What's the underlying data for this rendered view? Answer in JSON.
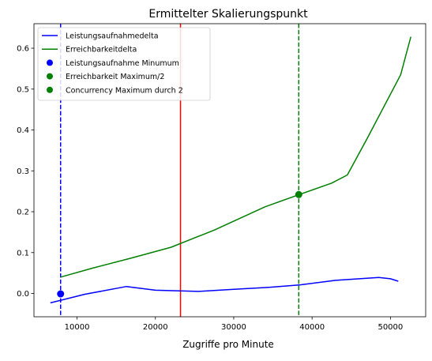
{
  "chart_data": {
    "type": "line",
    "title": "Ermittelter Skalierungspunkt",
    "xlabel": "Zugriffe pro Minute",
    "ylabel": "",
    "xlim": [
      4500,
      54500
    ],
    "ylim": [
      -0.057,
      0.66
    ],
    "xticks": [
      10000,
      20000,
      30000,
      40000,
      50000
    ],
    "xtick_labels": [
      "10000",
      "20000",
      "30000",
      "40000",
      "50000"
    ],
    "yticks": [
      0.0,
      0.1,
      0.2,
      0.3,
      0.4,
      0.5,
      0.6
    ],
    "ytick_labels": [
      "0.0",
      "0.1",
      "0.2",
      "0.3",
      "0.4",
      "0.5",
      "0.6"
    ],
    "grid": false,
    "legend_position": "upper-left",
    "series": [
      {
        "name": "Leistungsaufnahmedelta",
        "kind": "line",
        "color": "#0000ff",
        "x": [
          6600,
          11000,
          16300,
          20000,
          25500,
          30000,
          34500,
          38500,
          43000,
          48500,
          50000,
          51000
        ],
        "y": [
          -0.023,
          -0.002,
          0.017,
          0.008,
          0.005,
          0.01,
          0.015,
          0.021,
          0.032,
          0.039,
          0.036,
          0.03
        ]
      },
      {
        "name": "Erreichbarkeitdelta",
        "kind": "line",
        "color": "#008000",
        "x": [
          7900,
          12000,
          17000,
          22000,
          27500,
          34000,
          38500,
          42500,
          44500,
          47000,
          51300,
          52600
        ],
        "y": [
          0.04,
          0.062,
          0.087,
          0.113,
          0.155,
          0.212,
          0.243,
          0.27,
          0.29,
          0.378,
          0.535,
          0.628
        ]
      },
      {
        "name": "Leistungsaufnahme Minumum",
        "kind": "point",
        "color": "#0000ff",
        "x": [
          7900
        ],
        "y": [
          -0.001
        ]
      },
      {
        "name": "Erreichbarkeit Maximum/2",
        "kind": "point",
        "color": "#008000",
        "x": [
          38300
        ],
        "y": [
          0.242
        ]
      },
      {
        "name": "Concurrency Maximum durch 2",
        "kind": "point",
        "color": "#008000",
        "x": [],
        "y": []
      }
    ],
    "vertical_lines": [
      {
        "id": "blue-dashed-vline",
        "x": 7900,
        "color": "#0000ff",
        "dashed": true
      },
      {
        "id": "red-solid-vline",
        "x": 23200,
        "color": "#ff0000",
        "dashed": false
      },
      {
        "id": "green-dashed-vline",
        "x": 38300,
        "color": "#008000",
        "dashed": true
      }
    ]
  }
}
